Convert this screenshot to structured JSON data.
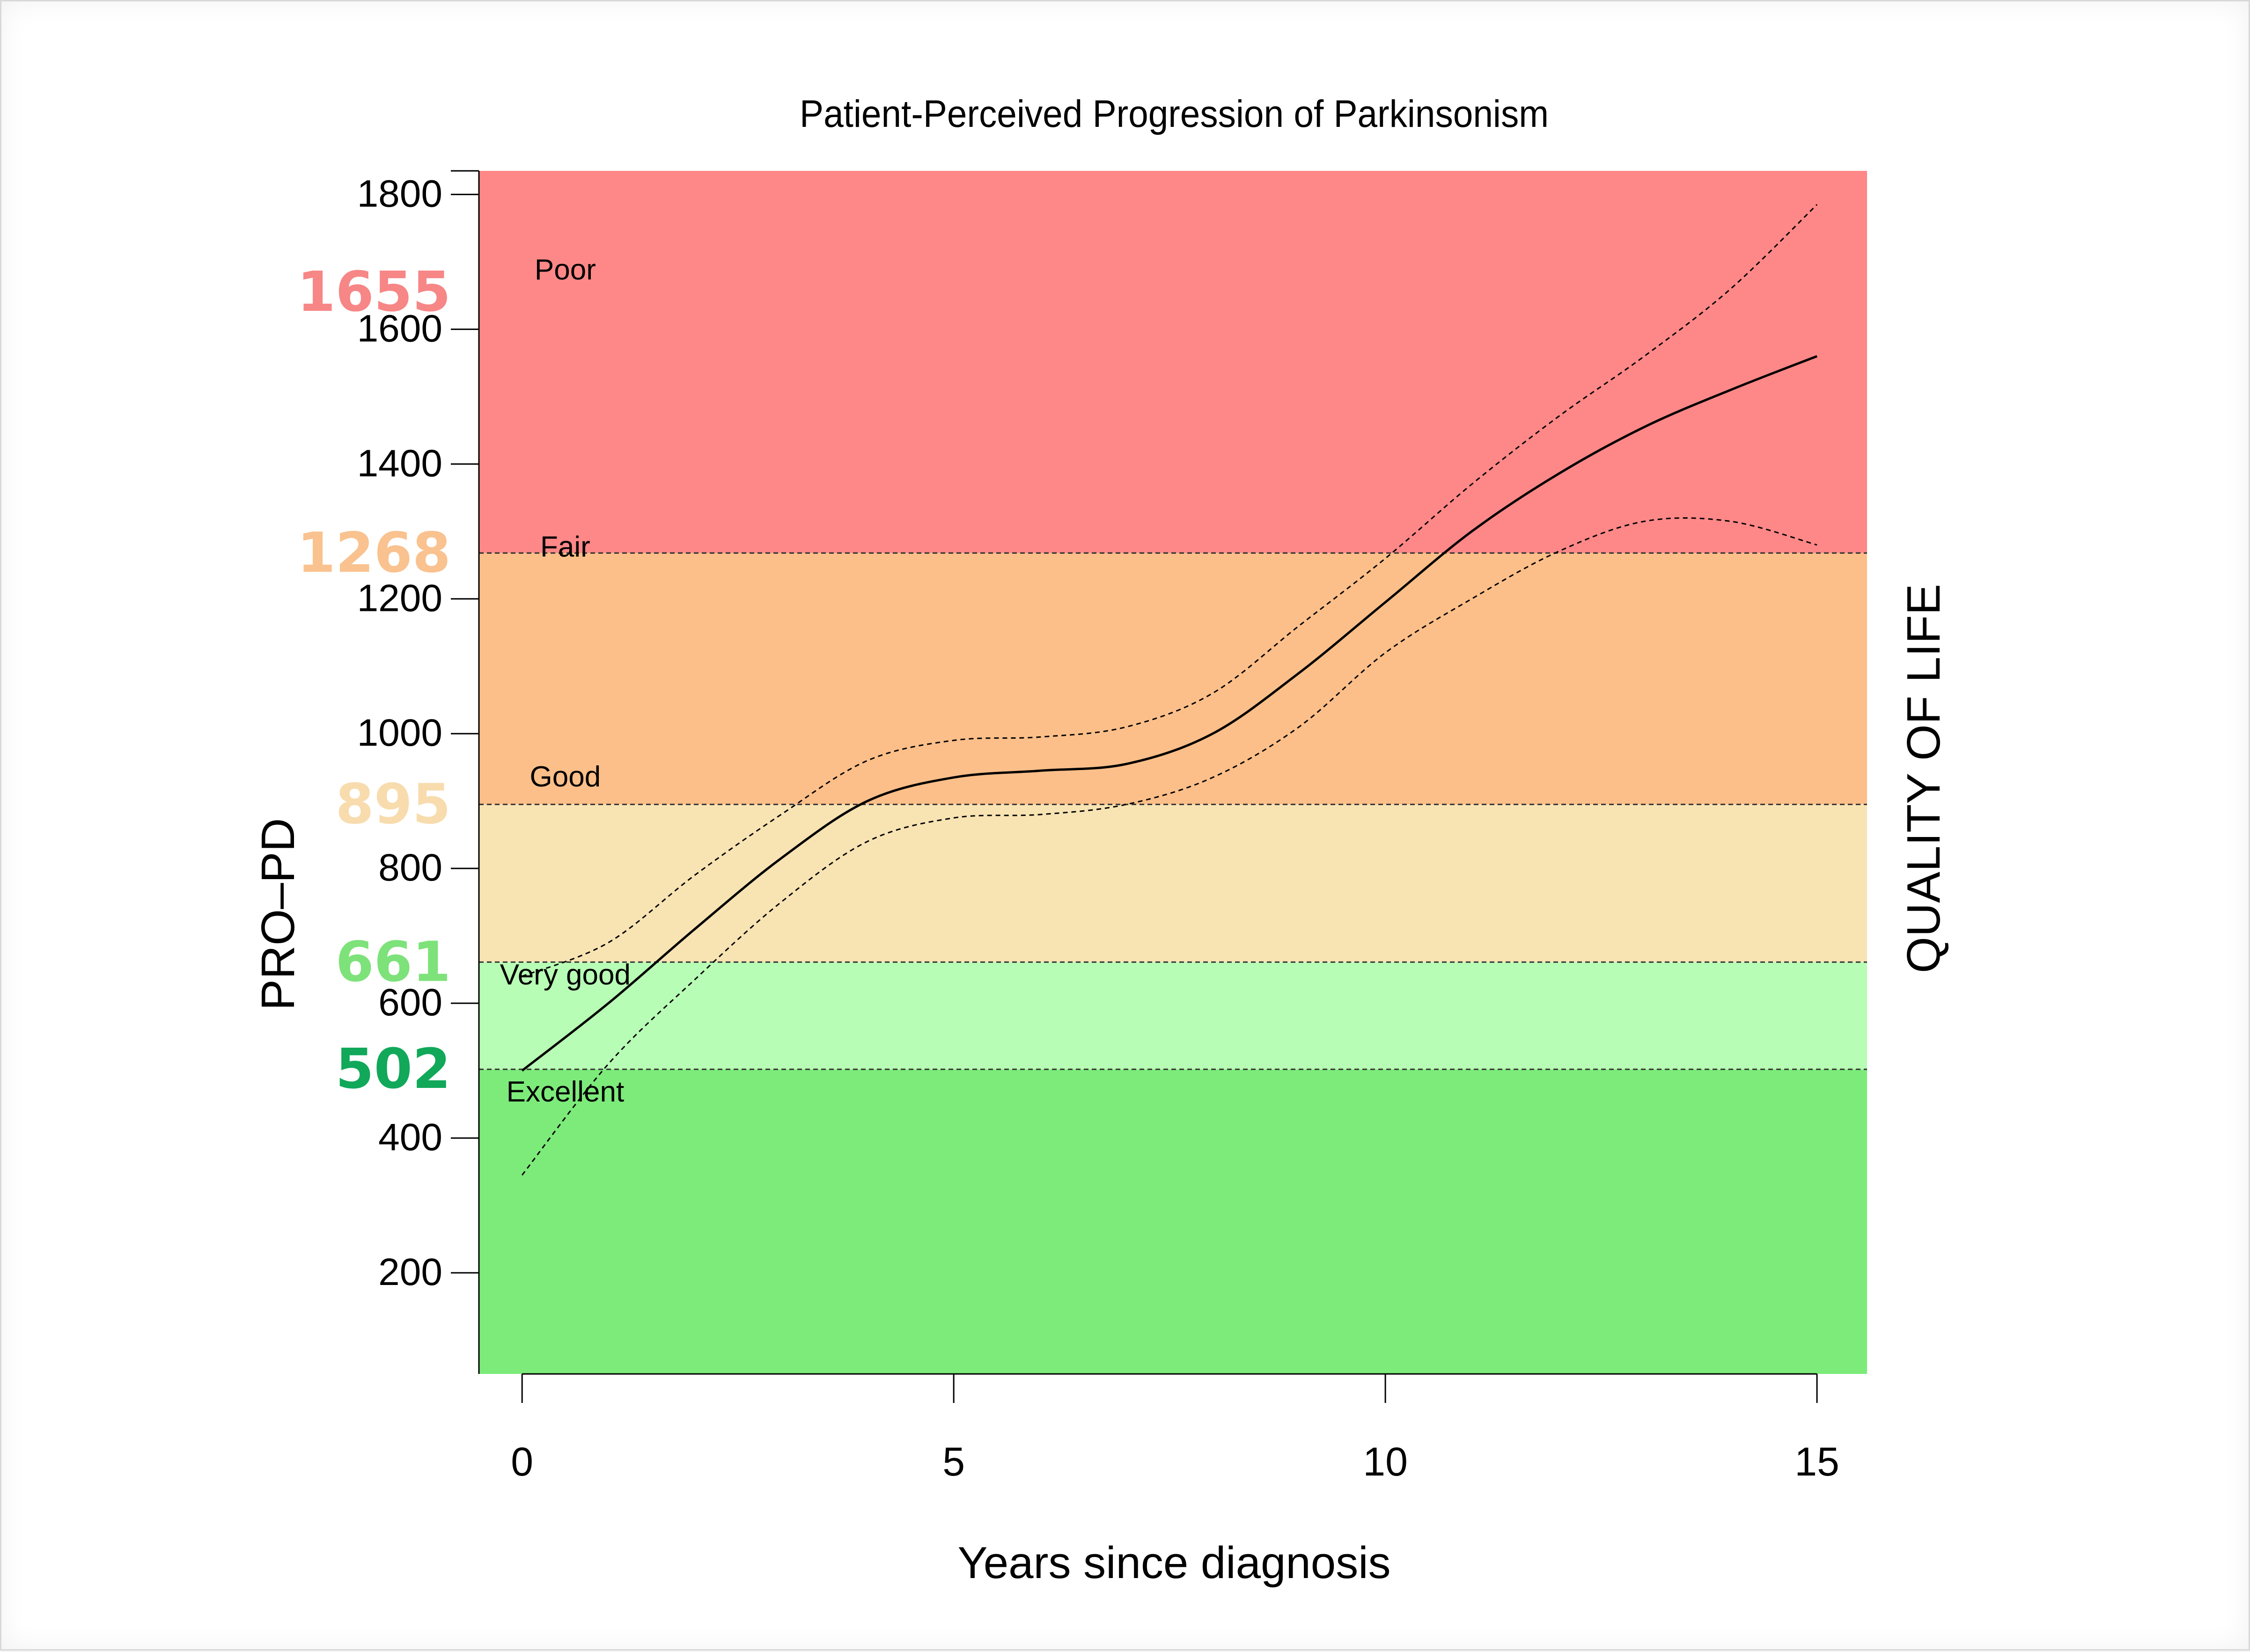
{
  "chart_data": {
    "type": "line",
    "title": "Patient-Perceived Progression of Parkinsonism",
    "xlabel": "Years since diagnosis",
    "ylabel": "PRO–PD",
    "right_label": "QUALITY OF LIFE",
    "xlim": [
      -0.5,
      15.58
    ],
    "ylim": [
      50,
      1835
    ],
    "x_ticks": [
      0,
      5,
      10,
      15
    ],
    "y_ticks": [
      200,
      400,
      600,
      800,
      1000,
      1200,
      1400,
      1600,
      1800
    ],
    "grid": false,
    "bands": [
      {
        "label": "Excellent",
        "from": 50,
        "to": 502,
        "color": "#7deb7a"
      },
      {
        "label": "Very good",
        "from": 502,
        "to": 661,
        "color": "#b8fdb5"
      },
      {
        "label": "Good",
        "from": 661,
        "to": 895,
        "color": "#f8e3b3"
      },
      {
        "label": "Fair",
        "from": 895,
        "to": 1268,
        "color": "#fcbf89"
      },
      {
        "label": "Poor",
        "from": 1268,
        "to": 1835,
        "color": "#fd8887"
      }
    ],
    "thresholds": [
      {
        "value": 502,
        "label": "502",
        "color": "#11a85a"
      },
      {
        "value": 661,
        "label": "661",
        "color": "#7de27a"
      },
      {
        "value": 895,
        "label": "895",
        "color": "#f8dcae"
      },
      {
        "value": 1268,
        "label": "1268",
        "color": "#f9c28f"
      },
      {
        "value": 1655,
        "label": "1655",
        "color": "#f78686"
      }
    ],
    "series": [
      {
        "role": "estimate",
        "style": "solid",
        "x": [
          0,
          1,
          2,
          3,
          4,
          5,
          6,
          7,
          8,
          9,
          10,
          11,
          12,
          13,
          14,
          15
        ],
        "y": [
          500,
          600,
          710,
          815,
          900,
          935,
          945,
          955,
          1000,
          1090,
          1195,
          1300,
          1385,
          1455,
          1510,
          1560
        ]
      },
      {
        "role": "upper bound",
        "style": "dashed",
        "x": [
          0,
          1,
          2,
          3,
          4,
          5,
          6,
          7,
          8,
          9,
          10,
          11,
          12,
          13,
          14,
          15
        ],
        "y": [
          640,
          690,
          790,
          880,
          960,
          990,
          995,
          1010,
          1060,
          1160,
          1260,
          1370,
          1470,
          1560,
          1660,
          1785
        ]
      },
      {
        "role": "lower bound",
        "style": "dashed",
        "x": [
          0,
          1,
          2,
          3,
          4,
          5,
          6,
          7,
          8,
          9,
          10,
          11,
          12,
          13,
          14,
          15
        ],
        "y": [
          345,
          510,
          635,
          750,
          840,
          875,
          880,
          895,
          935,
          1010,
          1120,
          1200,
          1270,
          1315,
          1315,
          1280
        ]
      }
    ]
  }
}
